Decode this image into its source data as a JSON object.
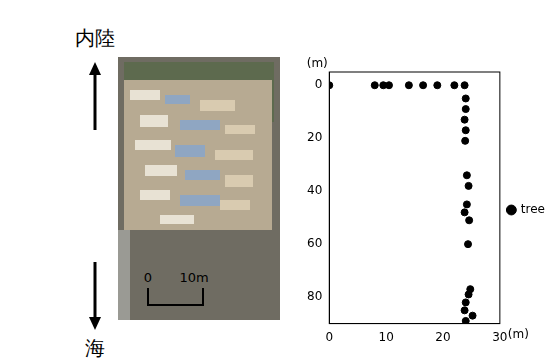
{
  "photo_panel": {
    "top_label": "内陸",
    "bottom_label": "海",
    "scale_bar_labels": [
      "0",
      "10m"
    ]
  },
  "chart_data": {
    "type": "scatter",
    "xlabel": "(m)",
    "ylabel": "(m)",
    "xlim": [
      0,
      30
    ],
    "xticks": [
      0,
      10,
      20,
      30
    ],
    "ylim": [
      -5,
      90
    ],
    "yticks": [
      0,
      20,
      40,
      60,
      80
    ],
    "grid": false,
    "legend": "right",
    "series": [
      {
        "name": "tree",
        "color": "#000000",
        "marker": "circle",
        "x": [
          0,
          8,
          9.5,
          10.5,
          14,
          16.5,
          19,
          22,
          23.8,
          24,
          24,
          23.8,
          24,
          23.9,
          24.2,
          24.5,
          24.2,
          23.8,
          24.6,
          24.4,
          24.8,
          24.5,
          24,
          23.8,
          25.2,
          24
        ],
        "values": [
          0,
          0,
          0,
          0,
          0,
          0,
          0,
          0,
          0,
          5,
          9,
          13,
          17,
          21,
          34,
          38,
          45,
          48,
          51,
          60,
          77,
          79,
          82,
          85,
          87,
          89
        ]
      }
    ]
  }
}
